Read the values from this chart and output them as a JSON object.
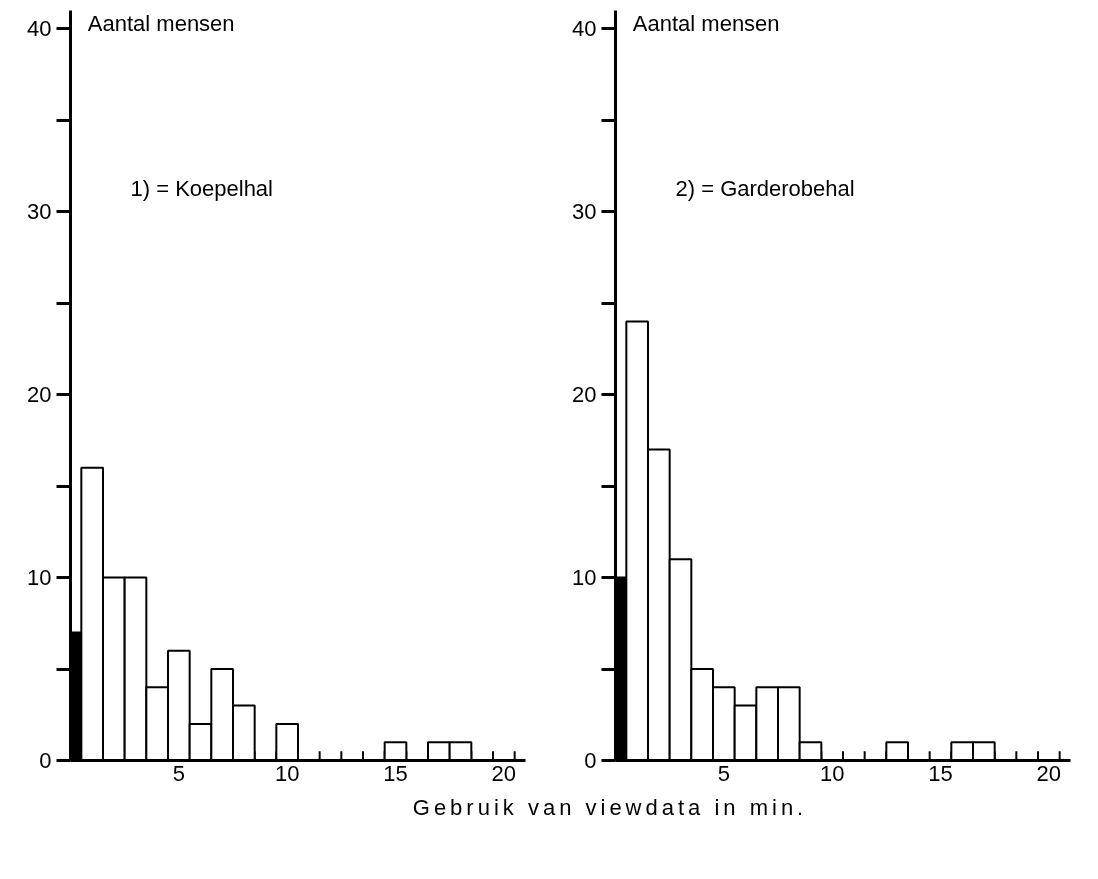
{
  "chart_data": [
    {
      "type": "histogram",
      "ylabel": "Aantal mensen",
      "xlabel": "Gebruik van viewdata in min.",
      "annotations": [
        "1) = Koepelhal"
      ],
      "bins": [
        0,
        0.5,
        1.5,
        2.5,
        3.5,
        4.5,
        5.5,
        6.5,
        7.5,
        8.5,
        9.5,
        10.5,
        11.5,
        12.5,
        13.5,
        14.5,
        15.5,
        16.5,
        17.5,
        18.5,
        19.5,
        20.5
      ],
      "values": [
        7,
        16,
        10,
        10,
        4,
        6,
        2,
        5,
        3,
        0,
        2,
        0,
        0,
        0,
        0,
        1,
        0,
        1,
        1,
        0,
        0
      ],
      "colors": [
        "#000000",
        "#ffffff",
        "#ffffff",
        "#ffffff",
        "#ffffff",
        "#ffffff",
        "#ffffff",
        "#ffffff",
        "#ffffff",
        "#000000",
        "#ffffff",
        "#000000",
        "#000000",
        "#000000",
        "#000000",
        "#ffffff",
        "#000000",
        "#ffffff",
        "#ffffff",
        "#000000",
        "#000000"
      ],
      "xlim": [
        0,
        21
      ],
      "xticks": [
        5,
        10,
        15,
        20
      ],
      "ylim": [
        0,
        41
      ],
      "yticks": [
        0,
        {
          "value": 5,
          "label": null
        },
        10,
        {
          "value": 15,
          "label": null
        },
        20,
        {
          "value": 25,
          "label": null
        },
        30,
        {
          "value": 35,
          "label": null
        },
        40
      ],
      "grid": false
    },
    {
      "type": "histogram",
      "ylabel": "Aantal mensen",
      "annotations": [
        "2) = Garderobehal"
      ],
      "bins": [
        0,
        0.5,
        1.5,
        2.5,
        3.5,
        4.5,
        5.5,
        6.5,
        7.5,
        8.5,
        9.5,
        10.5,
        11.5,
        12.5,
        13.5,
        14.5,
        15.5,
        16.5,
        17.5,
        18.5,
        19.5,
        20.5
      ],
      "values": [
        10,
        24,
        17,
        11,
        5,
        4,
        3,
        4,
        4,
        1,
        0,
        0,
        0,
        1,
        0,
        0,
        1,
        1,
        0,
        0,
        0
      ],
      "colors": [
        "#000000",
        "#ffffff",
        "#ffffff",
        "#ffffff",
        "#ffffff",
        "#ffffff",
        "#ffffff",
        "#ffffff",
        "#ffffff",
        "#ffffff",
        "#000000",
        "#000000",
        "#000000",
        "#ffffff",
        "#000000",
        "#000000",
        "#ffffff",
        "#ffffff",
        "#000000",
        "#000000",
        "#000000"
      ],
      "xlim": [
        0,
        21
      ],
      "xticks": [
        5,
        10,
        15,
        20
      ],
      "ylim": [
        0,
        41
      ],
      "yticks": [
        0,
        {
          "value": 5,
          "label": null
        },
        10,
        {
          "value": 15,
          "label": null
        },
        20,
        {
          "value": 25,
          "label": null
        },
        30,
        {
          "value": 35,
          "label": null
        },
        40
      ],
      "grid": false
    }
  ]
}
